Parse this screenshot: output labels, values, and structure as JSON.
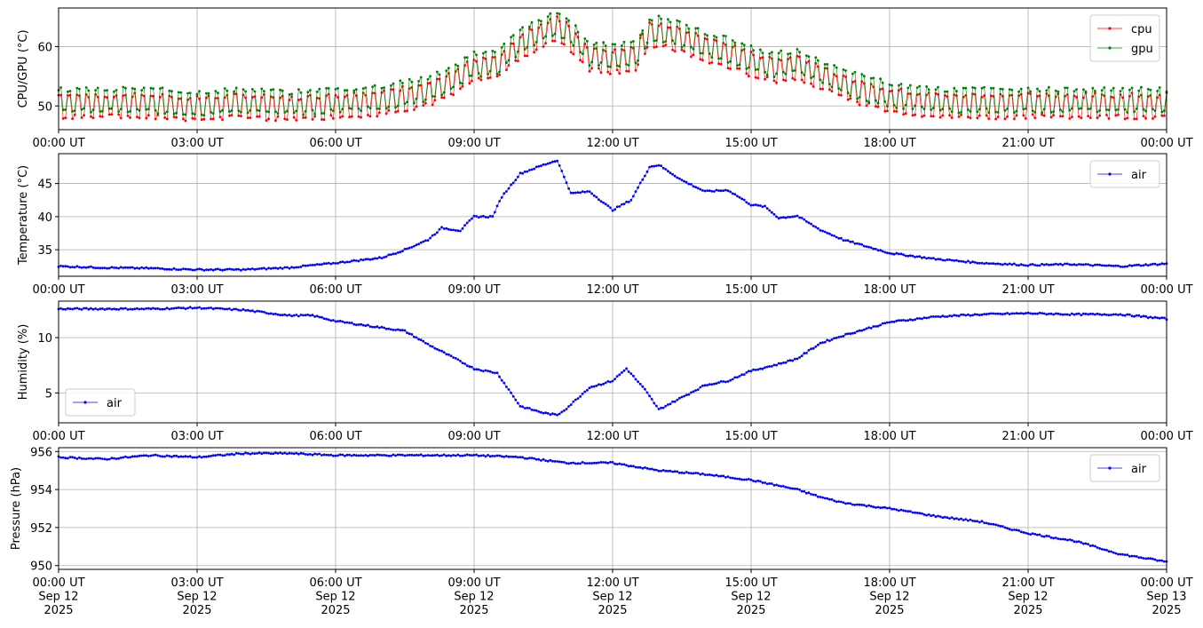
{
  "chart_data": [
    {
      "type": "line",
      "ylabel": "CPU/GPU (°C)",
      "ylim": [
        46,
        66.5
      ],
      "yticks": [
        50,
        60
      ],
      "xlim": [
        0,
        24
      ],
      "xtick_labels": [
        "00:00 UT",
        "03:00 UT",
        "06:00 UT",
        "09:00 UT",
        "12:00 UT",
        "15:00 UT",
        "18:00 UT",
        "21:00 UT",
        "00:00 UT"
      ],
      "grid": true,
      "legend": "top-right",
      "series": [
        {
          "name": "cpu",
          "color": "#ff0000",
          "x": [
            0,
            1,
            2,
            3,
            4,
            5,
            6,
            7,
            8,
            8.5,
            9,
            9.5,
            10,
            10.5,
            10.8,
            11,
            11.5,
            12,
            12.5,
            12.8,
            13,
            13.5,
            14,
            14.5,
            15,
            15.5,
            16,
            16.5,
            17,
            18,
            19,
            20,
            21,
            22,
            23,
            24
          ],
          "values": [
            50,
            50,
            50,
            49.5,
            50,
            49.5,
            50,
            50.5,
            52,
            53.5,
            56,
            56.5,
            60,
            62,
            63,
            62,
            58,
            57.5,
            58,
            62,
            62,
            61,
            59.5,
            58.5,
            57,
            56,
            56.5,
            55,
            53,
            51,
            50,
            50,
            50,
            50,
            50,
            50
          ]
        },
        {
          "name": "gpu",
          "color": "#008000",
          "x": [
            0,
            1,
            2,
            3,
            4,
            5,
            6,
            7,
            8,
            8.5,
            9,
            9.5,
            10,
            10.5,
            10.8,
            11,
            11.5,
            12,
            12.5,
            12.8,
            13,
            13.5,
            14,
            14.5,
            15,
            15.5,
            16,
            16.5,
            17,
            18,
            19,
            20,
            21,
            22,
            23,
            24
          ],
          "values": [
            51,
            51,
            51,
            50.5,
            51,
            50.5,
            51,
            51.5,
            53,
            54.5,
            57,
            57.5,
            61,
            63,
            64,
            63,
            59,
            58.5,
            59,
            63,
            63,
            62,
            60.5,
            59.5,
            58,
            57,
            57.5,
            56,
            54,
            52,
            51,
            51,
            51,
            51,
            51,
            51
          ]
        }
      ]
    },
    {
      "type": "line",
      "ylabel": "Temperature (°C)",
      "ylim": [
        31,
        49.5
      ],
      "yticks": [
        35,
        40,
        45
      ],
      "xlim": [
        0,
        24
      ],
      "xtick_labels": [
        "00:00 UT",
        "03:00 UT",
        "06:00 UT",
        "09:00 UT",
        "12:00 UT",
        "15:00 UT",
        "18:00 UT",
        "21:00 UT",
        "00:00 UT"
      ],
      "grid": true,
      "legend": "top-right",
      "series": [
        {
          "name": "air",
          "color": "#0000ff",
          "x": [
            0,
            1,
            2,
            3,
            4,
            5,
            6,
            7,
            7.5,
            8,
            8.3,
            8.7,
            9,
            9.4,
            9.6,
            10,
            10.5,
            10.8,
            11.1,
            11.5,
            12,
            12.4,
            12.8,
            13,
            13.5,
            14,
            14.5,
            15,
            15.3,
            15.6,
            16,
            16.5,
            17,
            18,
            19,
            20,
            21,
            22,
            23,
            24
          ],
          "values": [
            32.5,
            32.3,
            32.2,
            32,
            32,
            32.3,
            33,
            33.8,
            35,
            36.5,
            38.3,
            37.9,
            40,
            40,
            43,
            46.5,
            47.8,
            48.5,
            43.5,
            43.8,
            41,
            42.5,
            47.5,
            47.8,
            45.5,
            43.8,
            44,
            41.8,
            41.5,
            39.8,
            40.1,
            38,
            36.5,
            34.5,
            33.6,
            33,
            32.7,
            32.8,
            32.5,
            32.9
          ]
        }
      ]
    },
    {
      "type": "line",
      "ylabel": "Humidity (%)",
      "ylim": [
        2.3,
        13.3
      ],
      "yticks": [
        5,
        10
      ],
      "xlim": [
        0,
        24
      ],
      "xtick_labels": [
        "00:00 UT",
        "03:00 UT",
        "06:00 UT",
        "09:00 UT",
        "12:00 UT",
        "15:00 UT",
        "18:00 UT",
        "21:00 UT",
        "00:00 UT"
      ],
      "grid": true,
      "legend": "bottom-left",
      "series": [
        {
          "name": "air",
          "color": "#0000ff",
          "x": [
            0,
            1,
            2,
            3,
            4,
            5,
            5.5,
            6,
            7,
            7.5,
            8,
            8.5,
            9,
            9.5,
            10,
            10.5,
            10.8,
            11,
            11.5,
            12,
            12.3,
            12.7,
            13,
            13.5,
            14,
            14.5,
            15,
            15.5,
            16,
            16.5,
            17,
            18,
            19,
            20,
            21,
            22,
            23,
            24
          ],
          "values": [
            12.6,
            12.6,
            12.6,
            12.7,
            12.5,
            12,
            12.0,
            11.5,
            10.9,
            10.6,
            9.4,
            8.3,
            7.2,
            6.8,
            3.8,
            3.2,
            3.0,
            3.6,
            5.5,
            6.1,
            7.2,
            5.3,
            3.5,
            4.6,
            5.7,
            6.1,
            7.0,
            7.5,
            8.1,
            9.5,
            10.2,
            11.4,
            11.9,
            12.1,
            12.2,
            12.1,
            12.1,
            11.7
          ]
        }
      ]
    },
    {
      "type": "line",
      "ylabel": "Pressure (hPa)",
      "ylim": [
        949.8,
        956.2
      ],
      "yticks": [
        950,
        952,
        954,
        956
      ],
      "xlim": [
        0,
        24
      ],
      "xtick_labels": [
        [
          "00:00 UT",
          "Sep 12",
          "2025"
        ],
        [
          "03:00 UT",
          "Sep 12",
          "2025"
        ],
        [
          "06:00 UT",
          "Sep 12",
          "2025"
        ],
        [
          "09:00 UT",
          "Sep 12",
          "2025"
        ],
        [
          "12:00 UT",
          "Sep 12",
          "2025"
        ],
        [
          "15:00 UT",
          "Sep 12",
          "2025"
        ],
        [
          "18:00 UT",
          "Sep 12",
          "2025"
        ],
        [
          "21:00 UT",
          "Sep 12",
          "2025"
        ],
        [
          "00:00 UT",
          "Sep 13",
          "2025"
        ]
      ],
      "grid": true,
      "legend": "top-right",
      "series": [
        {
          "name": "air",
          "color": "#0000ff",
          "x": [
            0,
            1,
            2,
            3,
            4,
            5,
            6,
            7,
            8,
            9,
            10,
            11,
            12,
            13,
            14,
            15,
            16,
            16.5,
            17,
            18,
            19,
            20,
            21,
            22,
            23,
            24
          ],
          "values": [
            955.7,
            955.6,
            955.8,
            955.7,
            955.9,
            955.9,
            955.8,
            955.8,
            955.8,
            955.8,
            955.7,
            955.4,
            955.4,
            955,
            954.8,
            954.5,
            954,
            953.6,
            953.3,
            953,
            952.6,
            952.3,
            951.7,
            951.3,
            950.6,
            950.2
          ]
        }
      ]
    }
  ]
}
